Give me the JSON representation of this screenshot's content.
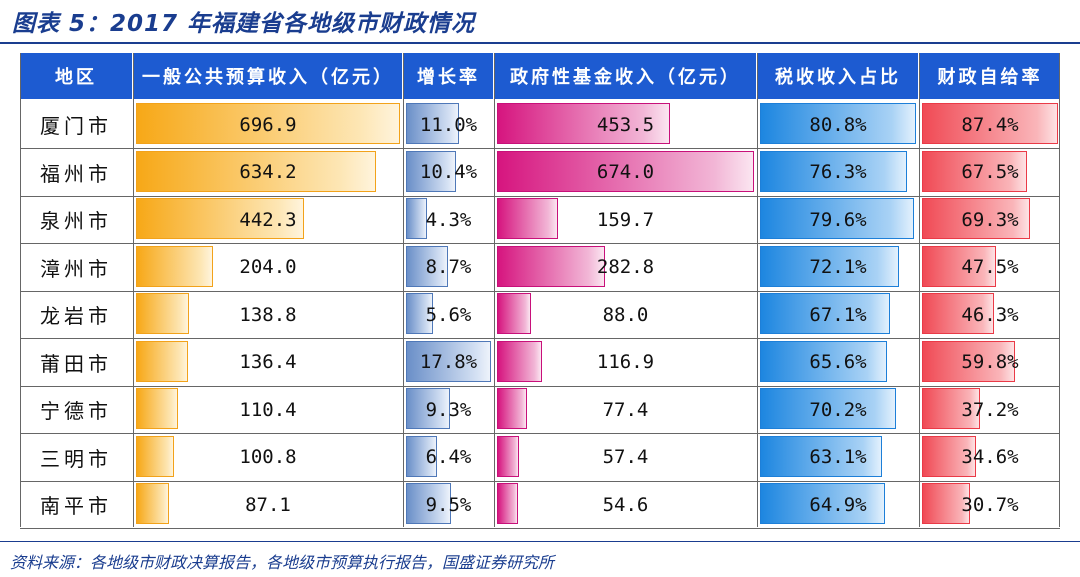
{
  "title": "图表 5：2017 年福建省各地级市财政情况",
  "source": "资料来源：各地级市财政决算报告，各地级市预算执行报告，国盛证券研究所",
  "colors": {
    "header": "#1d5bd1",
    "revenue": "#f7a817",
    "growth": "#6a8fc8",
    "gov_fund": "#d6157f",
    "tax_share": "#1d86e0",
    "self_sufficiency": "#f04a55"
  },
  "chart_data": {
    "type": "table",
    "title": "图表 5：2017 年福建省各地级市财政情况",
    "columns": [
      "地区",
      "一般公共预算收入（亿元）",
      "增长率",
      "政府性基金收入（亿元）",
      "税收收入占比",
      "财政自给率"
    ],
    "rows": [
      {
        "city": "厦门市",
        "revenue": "696.9",
        "growth": "11.0%",
        "gov_fund": "453.5",
        "tax_share": "80.8%",
        "self_sufficiency": "87.4%"
      },
      {
        "city": "福州市",
        "revenue": "634.2",
        "growth": "10.4%",
        "gov_fund": "674.0",
        "tax_share": "76.3%",
        "self_sufficiency": "67.5%"
      },
      {
        "city": "泉州市",
        "revenue": "442.3",
        "growth": "4.3%",
        "gov_fund": "159.7",
        "tax_share": "79.6%",
        "self_sufficiency": "69.3%"
      },
      {
        "city": "漳州市",
        "revenue": "204.0",
        "growth": "8.7%",
        "gov_fund": "282.8",
        "tax_share": "72.1%",
        "self_sufficiency": "47.5%"
      },
      {
        "city": "龙岩市",
        "revenue": "138.8",
        "growth": "5.6%",
        "gov_fund": "88.0",
        "tax_share": "67.1%",
        "self_sufficiency": "46.3%"
      },
      {
        "city": "莆田市",
        "revenue": "136.4",
        "growth": "17.8%",
        "gov_fund": "116.9",
        "tax_share": "65.6%",
        "self_sufficiency": "59.8%"
      },
      {
        "city": "宁德市",
        "revenue": "110.4",
        "growth": "9.3%",
        "gov_fund": "77.4",
        "tax_share": "70.2%",
        "self_sufficiency": "37.2%"
      },
      {
        "city": "三明市",
        "revenue": "100.8",
        "growth": "6.4%",
        "gov_fund": "57.4",
        "tax_share": "63.1%",
        "self_sufficiency": "34.6%"
      },
      {
        "city": "南平市",
        "revenue": "87.1",
        "growth": "9.5%",
        "gov_fund": "54.6",
        "tax_share": "64.9%",
        "self_sufficiency": "30.7%"
      }
    ]
  }
}
